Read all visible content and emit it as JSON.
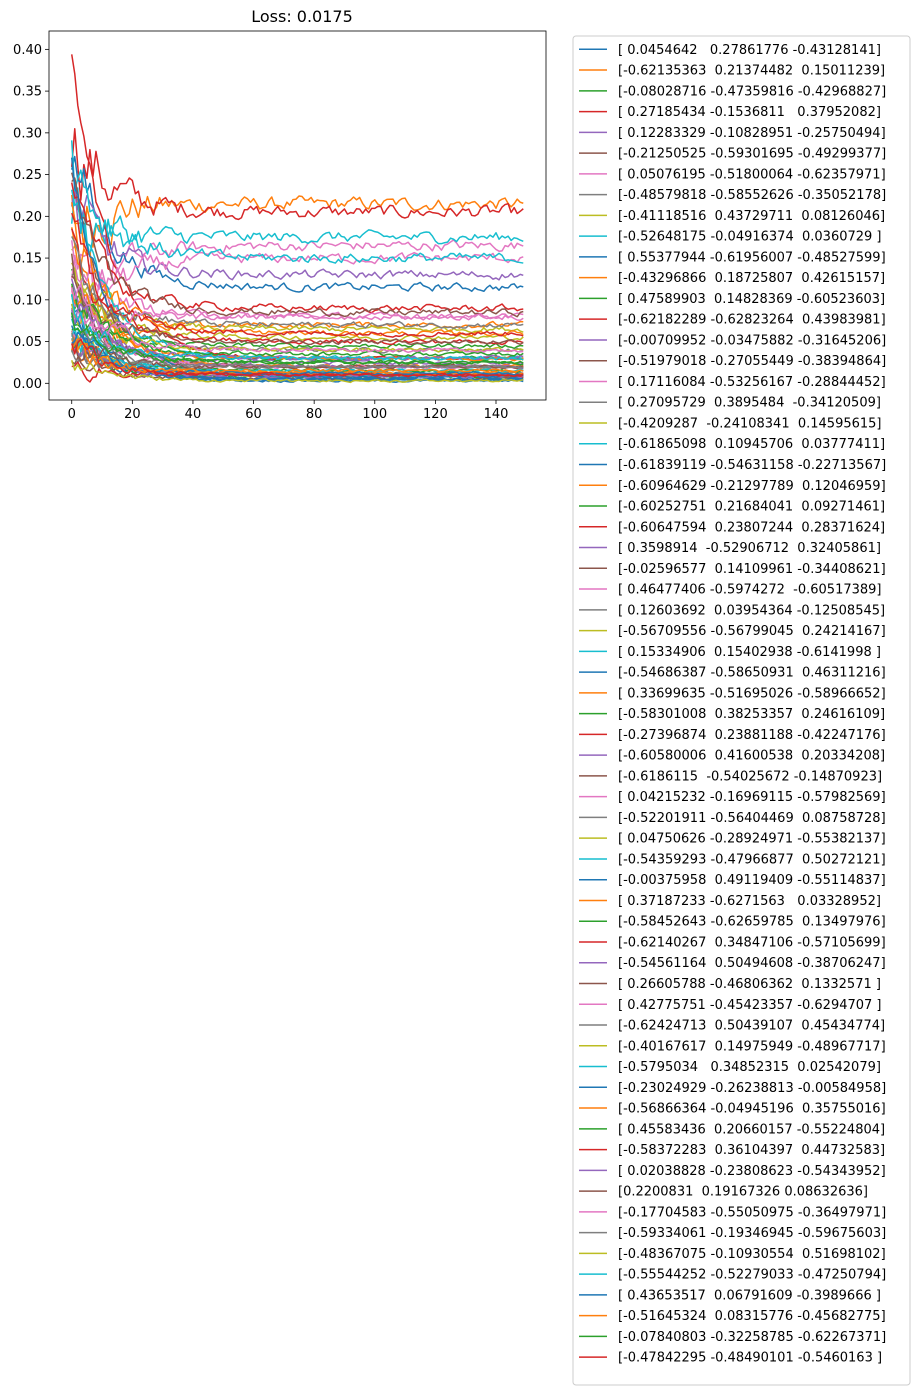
{
  "chart_data": {
    "type": "line",
    "title": "Loss: 0.0175",
    "xlabel": "",
    "ylabel": "",
    "xlim": [
      -7.5,
      156.5
    ],
    "ylim": [
      -0.02,
      0.422
    ],
    "x_ticks": [
      0,
      20,
      40,
      60,
      80,
      100,
      120,
      140
    ],
    "x_tick_labels": [
      "0",
      "20",
      "40",
      "60",
      "80",
      "100",
      "120",
      "140"
    ],
    "y_ticks": [
      0.0,
      0.05,
      0.1,
      0.15,
      0.2,
      0.25,
      0.3,
      0.35,
      0.4
    ],
    "y_tick_labels": [
      "0.00",
      "0.05",
      "0.10",
      "0.15",
      "0.20",
      "0.25",
      "0.30",
      "0.35",
      "0.40"
    ],
    "x": "0..149 (150 steps)",
    "grid": false,
    "legend_position": "outside-right",
    "colors": [
      "#1f77b4",
      "#ff7f0e",
      "#2ca02c",
      "#d62728",
      "#9467bd",
      "#8c564b",
      "#e377c2",
      "#7f7f7f",
      "#bcbd22",
      "#17becf"
    ],
    "series": [
      {
        "name": "[ 0.0454642   0.27861776 -0.43128141]",
        "start": 0.05,
        "end": 0.005
      },
      {
        "name": "[-0.62135363  0.21374482  0.15011239]",
        "start": 0.19,
        "end": 0.215
      },
      {
        "name": "[-0.08028716 -0.47359816 -0.42968827]",
        "start": 0.12,
        "end": 0.03
      },
      {
        "name": "[ 0.27185434 -0.1536811   0.37952082]",
        "start": 0.3,
        "end": 0.205
      },
      {
        "name": "[ 0.12283329 -0.10828951 -0.25750494]",
        "start": 0.1,
        "end": 0.025
      },
      {
        "name": "[-0.21250525 -0.59301695 -0.49299377]",
        "start": 0.25,
        "end": 0.01
      },
      {
        "name": "[ 0.05076195 -0.51800064 -0.62357971]",
        "start": 0.08,
        "end": 0.165
      },
      {
        "name": "[-0.48579818 -0.58552626 -0.35052178]",
        "start": 0.15,
        "end": 0.04
      },
      {
        "name": "[-0.41118516  0.43729711  0.08126046]",
        "start": 0.06,
        "end": 0.01
      },
      {
        "name": "[-0.52648175 -0.04916374  0.0360729 ]",
        "start": 0.2,
        "end": 0.175
      },
      {
        "name": "[ 0.55377944 -0.61956007 -0.48527599]",
        "start": 0.28,
        "end": 0.115
      },
      {
        "name": "[-0.43296866  0.18725807  0.42615157]",
        "start": 0.04,
        "end": 0.07
      },
      {
        "name": "[ 0.47589903  0.14828369 -0.60523603]",
        "start": 0.1,
        "end": 0.045
      },
      {
        "name": "[-0.62182289 -0.62823264  0.43983981]",
        "start": 0.4,
        "end": 0.03
      },
      {
        "name": "[-0.00709952 -0.03475882 -0.31645206]",
        "start": 0.22,
        "end": 0.13
      },
      {
        "name": "[-0.51979018 -0.27055449 -0.38394864]",
        "start": 0.12,
        "end": 0.02
      },
      {
        "name": "[ 0.17116084 -0.53256167 -0.28844452]",
        "start": 0.06,
        "end": 0.15
      },
      {
        "name": "[ 0.27095729  0.3895484  -0.34120509]",
        "start": 0.09,
        "end": 0.012
      },
      {
        "name": "[-0.4209287  -0.24108341  0.14595615]",
        "start": 0.14,
        "end": 0.065
      },
      {
        "name": "[-0.61865098  0.10945706  0.03777411]",
        "start": 0.27,
        "end": 0.15
      },
      {
        "name": "[-0.61839119 -0.54631158 -0.22713567]",
        "start": 0.07,
        "end": 0.003
      },
      {
        "name": "[-0.60964629 -0.21297789  0.12046959]",
        "start": 0.18,
        "end": 0.02
      },
      {
        "name": "[-0.60252751  0.21684041  0.09271461]",
        "start": 0.05,
        "end": 0.008
      },
      {
        "name": "[-0.60647594  0.23807244  0.28371624]",
        "start": 0.21,
        "end": 0.09
      },
      {
        "name": "[ 0.3598914  -0.52906712  0.32405861]",
        "start": 0.11,
        "end": 0.02
      },
      {
        "name": "[-0.02596577  0.14109961 -0.34408621]",
        "start": 0.03,
        "end": 0.006
      },
      {
        "name": "[ 0.46477406 -0.5974272  -0.60517389]",
        "start": 0.16,
        "end": 0.08
      },
      {
        "name": "[ 0.12603692  0.03954364 -0.12508545]",
        "start": 0.04,
        "end": 0.012
      },
      {
        "name": "[-0.56709556 -0.56799045  0.24214167]",
        "start": 0.13,
        "end": 0.055
      },
      {
        "name": "[ 0.15334906  0.15402938 -0.6141998 ]",
        "start": 0.24,
        "end": 0.03
      },
      {
        "name": "[-0.54686387 -0.58650931  0.46311216]",
        "start": 0.09,
        "end": 0.004
      },
      {
        "name": "[ 0.33699635 -0.51695026 -0.58966652]",
        "start": 0.2,
        "end": 0.06
      },
      {
        "name": "[-0.58301008  0.38253357  0.24616109]",
        "start": 0.07,
        "end": 0.015
      },
      {
        "name": "[-0.27396874  0.23881188 -0.42247176]",
        "start": 0.17,
        "end": 0.05
      },
      {
        "name": "[-0.60580006  0.41600538  0.20334208]",
        "start": 0.05,
        "end": 0.008
      },
      {
        "name": "[-0.6186115  -0.54025672 -0.14870923]",
        "start": 0.22,
        "end": 0.085
      },
      {
        "name": "[ 0.04215232 -0.16969115 -0.57982569]",
        "start": 0.1,
        "end": 0.02
      },
      {
        "name": "[-0.52201911 -0.56404469  0.08758728]",
        "start": 0.15,
        "end": 0.07
      },
      {
        "name": "[ 0.04750626 -0.28924971 -0.55382137]",
        "start": 0.06,
        "end": 0.01
      },
      {
        "name": "[-0.54359293 -0.47966877  0.50272121]",
        "start": 0.08,
        "end": 0.01
      },
      {
        "name": "[-0.00375958  0.49119409 -0.55114837]",
        "start": 0.26,
        "end": 0.008
      },
      {
        "name": "[ 0.37187233 -0.6271563   0.03328952]",
        "start": 0.12,
        "end": 0.03
      },
      {
        "name": "[-0.58452643 -0.62659785  0.13497976]",
        "start": 0.09,
        "end": 0.025
      },
      {
        "name": "[-0.62140267  0.34847106 -0.57105699]",
        "start": 0.18,
        "end": 0.06
      },
      {
        "name": "[-0.54561164  0.50494608 -0.38706247]",
        "start": 0.05,
        "end": 0.01
      },
      {
        "name": "[ 0.26605788 -0.46806362  0.1332571 ]",
        "start": 0.14,
        "end": 0.05
      },
      {
        "name": "[ 0.42775751 -0.45423357 -0.6294707 ]",
        "start": 0.07,
        "end": 0.08
      },
      {
        "name": "[-0.62424713  0.50439107  0.45434774]",
        "start": 0.03,
        "end": 0.02
      },
      {
        "name": "[-0.40167617  0.14975949 -0.48967717]",
        "start": 0.11,
        "end": 0.04
      },
      {
        "name": "[-0.5795034   0.34852315  0.02542079]",
        "start": 0.06,
        "end": 0.015
      },
      {
        "name": "[-0.23024929 -0.26238813 -0.00584958]",
        "start": 0.08,
        "end": 0.005
      },
      {
        "name": "[-0.56866364 -0.04945196  0.35755016]",
        "start": 0.04,
        "end": 0.012
      },
      {
        "name": "[ 0.45583436  0.20660157 -0.55224804]",
        "start": 0.13,
        "end": 0.035
      },
      {
        "name": "[-0.58372283  0.36104397  0.44732583]",
        "start": 0.02,
        "end": 0.01
      },
      {
        "name": "[ 0.02038828 -0.23808623 -0.54343952]",
        "start": 0.1,
        "end": 0.03
      },
      {
        "name": "[0.2200831  0.19167326 0.08632636]",
        "start": 0.05,
        "end": 0.02
      },
      {
        "name": "[-0.17704583 -0.55050975 -0.36497971]",
        "start": 0.12,
        "end": 0.04
      },
      {
        "name": "[-0.59334061 -0.19346945 -0.59675603]",
        "start": 0.07,
        "end": 0.02
      },
      {
        "name": "[-0.48367075 -0.10930554  0.51698102]",
        "start": 0.03,
        "end": 0.003
      },
      {
        "name": "[-0.55544252 -0.52279033 -0.47250794]",
        "start": 0.09,
        "end": 0.03
      },
      {
        "name": "[ 0.43653517  0.06791609 -0.3989666 ]",
        "start": 0.06,
        "end": 0.012
      },
      {
        "name": "[-0.51645324  0.08315776 -0.45682775]",
        "start": 0.04,
        "end": 0.015
      },
      {
        "name": "[-0.07840803 -0.32258785 -0.62267371]",
        "start": 0.08,
        "end": 0.025
      },
      {
        "name": "[-0.47842295 -0.48490101 -0.5460163 ]",
        "start": 0.05,
        "end": 0.01
      }
    ]
  }
}
